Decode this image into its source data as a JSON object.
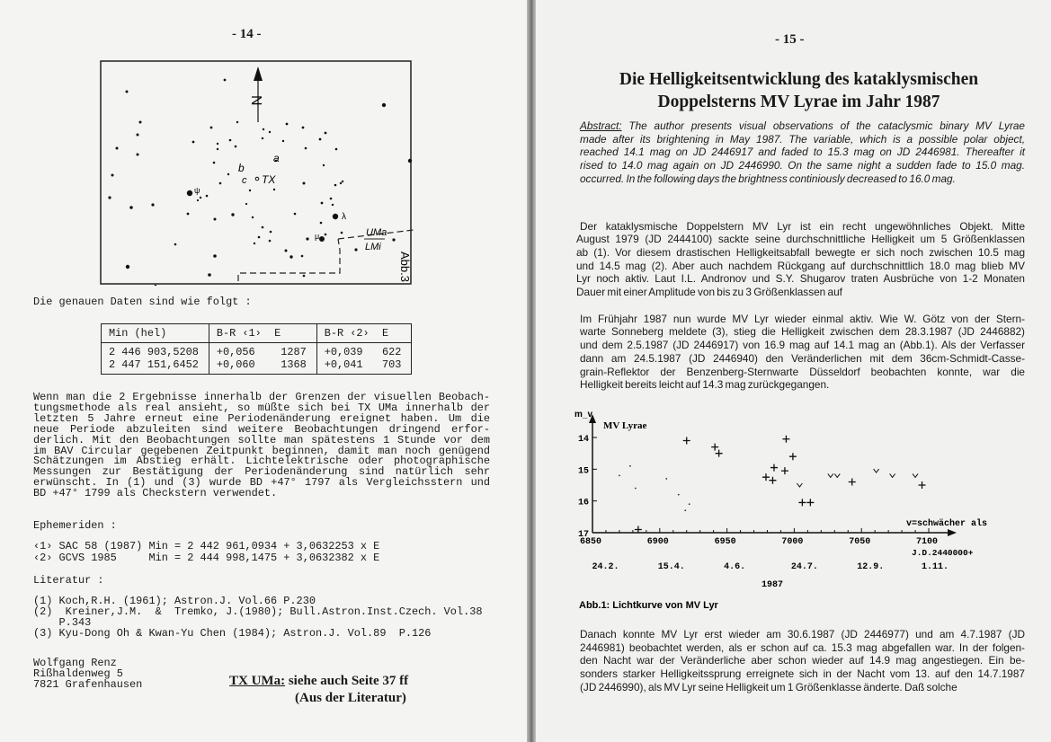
{
  "left_page": {
    "page_number": "- 14 -",
    "star_chart": {
      "labels": {
        "north": "N",
        "a": "a",
        "b": "b",
        "c": "c",
        "tx": "TX",
        "lambda": "λ",
        "psi": "ψ",
        "mu": "μ",
        "uma": "UMa",
        "lmi": "LMi",
        "figure": "Abb.3"
      }
    },
    "intro": "Die genauen Daten sind wie folgt :",
    "table": {
      "headers": [
        "Min (hel)",
        "B-R ‹1›  E",
        "B-R ‹2›  E"
      ],
      "rows": [
        [
          "2 446 903,5208",
          "+0,056",
          "1287",
          "+0,039",
          "622"
        ],
        [
          "2 447 151,6452",
          "+0,060",
          "1368",
          "+0,041",
          "703"
        ]
      ]
    },
    "paragraph": [
      "Wenn man die 2 Ergebnisse innerhalb der Grenzen der visuellen Beobach-",
      "tungsmethode als real ansieht, so müßte sich bei TX UMa innerhalb der",
      "letzten 5 Jahre erneut eine Periodenänderung ereignet haben. Um die",
      "neue Periode abzuleiten sind weitere Beobachtungen dringend erfor-",
      "derlich. Mit den Beobachtungen sollte man spätestens 1 Stunde vor dem",
      "im BAV Circular gegebenen Zeitpunkt beginnen, damit man noch genügend",
      "Schätzungen im Abstieg erhält. Lichtelektrische oder photographische",
      "Messungen zur Bestätigung der Periodenänderung sind natürlich sehr",
      "erwünscht. In (1) und (3) wurde BD +47° 1797 als Vergleichsstern und",
      "BD +47° 1799 als Checkstern verwendet."
    ],
    "ephemeriden_heading": "Ephemeriden :",
    "ephemeriden": [
      "‹1› SAC 58 (1987) Min = 2 442 961,0934 + 3,0632253 x E",
      "‹2› GCVS 1985     Min = 2 444 998,1475 + 3,0632382 x E"
    ],
    "literatur_heading": "Literatur :",
    "literatur": [
      "(1) Koch,R.H. (1961); Astron.J. Vol.66 P.230",
      "(2)  Kreiner,J.M.  &  Tremko, J.(1980); Bull.Astron.Inst.Czech. Vol.38",
      "    P.343",
      "(3) Kyu-Dong Oh & Kwan-Yu Chen (1984); Astron.J. Vol.89  P.126"
    ],
    "author": [
      "Wolfgang Renz",
      "Rißhaldenweg 5",
      "7821 Grafenhausen"
    ],
    "note_link": "TX UMa:",
    "note_rest": " siehe auch Seite 37 ff",
    "note_line2": "(Aus der Literatur)"
  },
  "right_page": {
    "page_number": "- 15 -",
    "title": [
      "Die Helligkeitsentwicklung des kataklysmischen",
      "Doppelsterns MV Lyrae im Jahr 1987"
    ],
    "abstract_label": "Abstract:",
    "abstract": [
      " The author presents visual observations of the cataclysmic binary MV Lyrae",
      "made after its brightening in May 1987. The variable, which is a possible polar object,",
      "reached 14.1 mag on JD 2446917 and faded to 15.3 mag on JD 2446981. Thereafter it",
      "rised to 14.0 mag again on JD 2446990. On the same night a sudden fade to 15.0 mag.",
      "occurred. In the following days the brightness continiously decreased to 16.0 mag."
    ],
    "paragraph1": [
      "Der kataklysmische Doppelstern MV Lyr ist ein recht ungewöhnliches Objekt. Mitte",
      "August 1979 (JD 2444100) sackte seine durchschnittliche Helligkeit um 5 Größenklassen",
      "ab (1). Vor diesem drastischen Helligkeitsabfall bewegte er sich noch zwischen 10.5 mag",
      "und 14.5 mag (2). Aber auch nachdem Rückgang auf durchschnittlich 18.0 mag blieb MV",
      "Lyr noch aktiv. Laut I.L. Andronov und S.Y. Shugarov traten Ausbrüche von 1-2 Monaten",
      "Dauer mit einer Amplitude von bis zu 3 Größenklassen auf"
    ],
    "paragraph2": [
      "Im Frühjahr 1987 nun wurde MV Lyr wieder einmal aktiv. Wie W. Götz von der Stern-",
      "warte Sonneberg meldete (3), stieg die Helligkeit zwischen dem 28.3.1987 (JD 2446882)",
      "und dem 2.5.1987 (JD 2446917) von 16.9 mag auf 14.1 mag an (Abb.1). Als der Verfasser",
      "dann am 24.5.1987 (JD 2446940) den Veränderlichen mit dem 36cm-Schmidt-Casse-",
      "grain-Reflektor der Benzenberg-Sternwarte Düsseldorf beobachten konnte, war die",
      "Helligkeit bereits leicht auf 14.3 mag zurückgegangen."
    ],
    "paragraph3": [
      "Danach konnte MV Lyr erst wieder am 30.6.1987 (JD 2446977) und am 4.7.1987 (JD",
      "2446981) beobachtet werden, als er schon auf ca. 15.3 mag abgefallen war. In der folgen-",
      "den Nacht war der Veränderliche aber schon wieder auf 14.9 mag angestiegen. Ein be-",
      "sonders starker Helligkeitssprung erreignete sich in der Nacht vom 13. auf den 14.7.1987",
      "(JD 2446990), als MV Lyr seine Helligkeit um 1 Größenklasse änderte. Daß solche"
    ],
    "figure_caption": "Abb.1: Lichtkurve von MV Lyr"
  },
  "chart_data": {
    "type": "scatter",
    "title": "MV Lyrae",
    "ylabel": "m_v",
    "xlabel": "J.D.2440000+",
    "xlim": [
      6850,
      7100
    ],
    "ylim": [
      17,
      14
    ],
    "y_inverted": true,
    "x_ticks": [
      "6850",
      "6900",
      "6950",
      "7000",
      "7050",
      "7100"
    ],
    "y_ticks": [
      "14",
      "15",
      "16",
      "17"
    ],
    "date_labels": [
      "24.2.",
      "15.4.",
      "4.6.",
      "24.7.",
      "12.9.",
      "1.11."
    ],
    "year_label": "1987",
    "legend": "v=schwächer als",
    "series": [
      {
        "marker": "plus",
        "points": [
          [
            6884,
            16.9
          ],
          [
            6920,
            14.1
          ],
          [
            6941,
            14.3
          ],
          [
            6944,
            14.5
          ],
          [
            6979,
            15.25
          ],
          [
            6984,
            15.35
          ],
          [
            6985,
            14.95
          ],
          [
            6993,
            15.05
          ],
          [
            6994,
            14.05
          ],
          [
            6999,
            14.6
          ],
          [
            7006,
            16.05
          ],
          [
            7012,
            16.05
          ],
          [
            7043,
            15.4
          ],
          [
            7095,
            15.5
          ]
        ]
      },
      {
        "marker": "v",
        "name": "v=schwächer als",
        "points": [
          [
            7004,
            15.5
          ],
          [
            7027,
            15.2
          ],
          [
            7032,
            15.2
          ],
          [
            7061,
            15.05
          ],
          [
            7073,
            15.2
          ],
          [
            7090,
            15.2
          ]
        ]
      },
      {
        "marker": "dot",
        "points": [
          [
            6870,
            15.2
          ],
          [
            6878,
            14.9
          ],
          [
            6882,
            15.6
          ],
          [
            6905,
            15.3
          ],
          [
            6914,
            15.8
          ],
          [
            6919,
            16.3
          ],
          [
            6922,
            16.1
          ]
        ]
      }
    ]
  }
}
